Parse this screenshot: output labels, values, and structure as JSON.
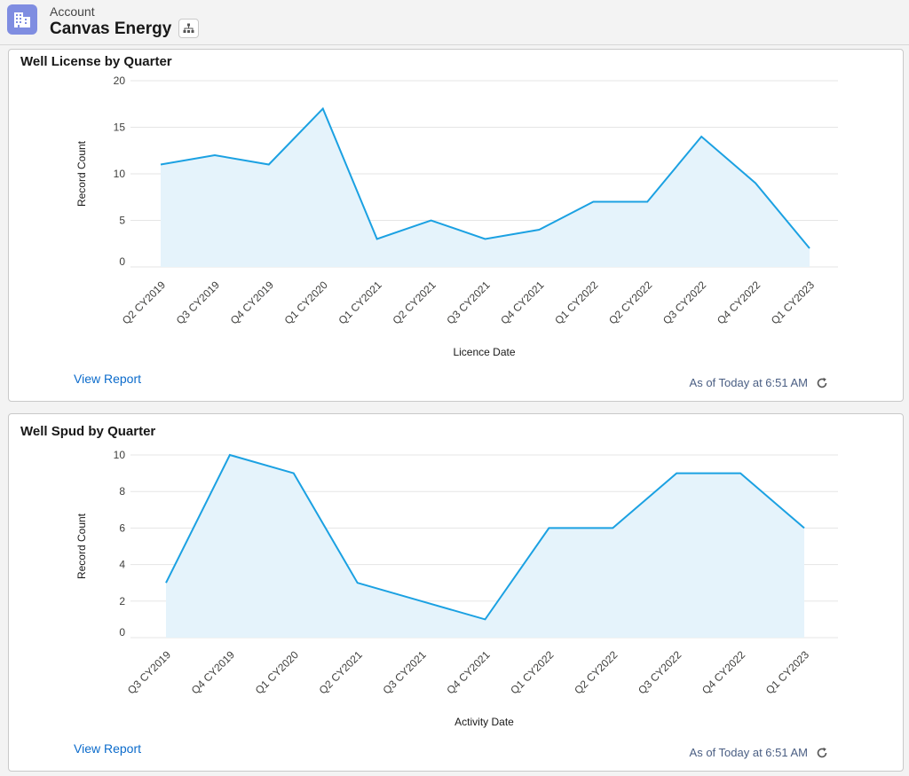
{
  "header": {
    "object_type": "Account",
    "record_name": "Canvas Energy"
  },
  "cards": [
    {
      "title": "Well License by Quarter",
      "view_report": "View Report",
      "as_of": "As of Today at 6:51 AM"
    },
    {
      "title": "Well Spud by Quarter",
      "view_report": "View Report",
      "as_of": "As of Today at 6:51 AM"
    }
  ],
  "chart_data": [
    {
      "type": "area",
      "title": "Well License by Quarter",
      "xlabel": "Licence Date",
      "ylabel": "Record Count",
      "categories": [
        "Q2 CY2019",
        "Q3 CY2019",
        "Q4 CY2019",
        "Q1 CY2020",
        "Q1 CY2021",
        "Q2 CY2021",
        "Q3 CY2021",
        "Q4 CY2021",
        "Q1 CY2022",
        "Q2 CY2022",
        "Q3 CY2022",
        "Q4 CY2022",
        "Q1 CY2023"
      ],
      "values": [
        11,
        12,
        11,
        17,
        3,
        5,
        3,
        4,
        7,
        7,
        14,
        9,
        2
      ],
      "yticks": [
        "0",
        "5",
        "10",
        "15",
        "20"
      ],
      "ylim": [
        0,
        20
      ],
      "grid": true,
      "color": "#1ba1e2"
    },
    {
      "type": "area",
      "title": "Well Spud by Quarter",
      "xlabel": "Activity Date",
      "ylabel": "Record Count",
      "categories": [
        "Q3 CY2019",
        "Q4 CY2019",
        "Q1 CY2020",
        "Q2 CY2021",
        "Q3 CY2021",
        "Q4 CY2021",
        "Q1 CY2022",
        "Q2 CY2022",
        "Q3 CY2022",
        "Q4 CY2022",
        "Q1 CY2023"
      ],
      "values": [
        3,
        10,
        9,
        3,
        2,
        1,
        6,
        6,
        9,
        9,
        6
      ],
      "yticks": [
        "0",
        "2",
        "4",
        "6",
        "8",
        "10"
      ],
      "ylim": [
        0,
        10
      ],
      "grid": true,
      "color": "#1ba1e2"
    }
  ]
}
